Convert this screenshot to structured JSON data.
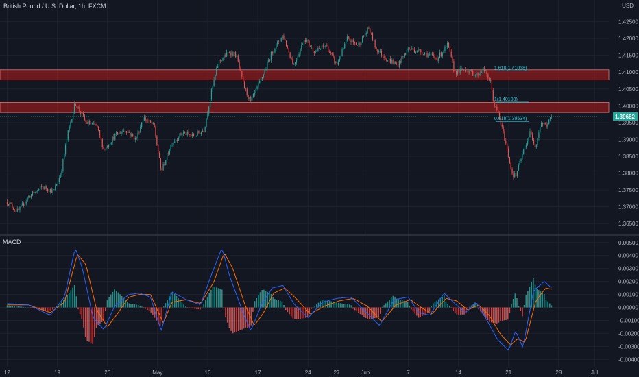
{
  "header": {
    "title": "British Pound / U.S. Dollar, 1h, FXCM",
    "currency": "USD"
  },
  "macd": {
    "label": "MACD"
  },
  "colors": {
    "bg": "#131722",
    "up": "#26a69a",
    "down": "#ef5350",
    "zone": "#b71c1c",
    "macd_line": "#2962ff",
    "signal_line": "#ff6d00",
    "fib": "#26c6da",
    "grid": "#1e222d",
    "text": "#b2b5be"
  },
  "chart_data": [
    {
      "type": "candlestick",
      "title": "British Pound / U.S. Dollar, 1h, FXCM",
      "y_ticks": [
        "1.42500",
        "1.42000",
        "1.41500",
        "1.41000",
        "1.40500",
        "1.40000",
        "1.39500",
        "1.39000",
        "1.38500",
        "1.38000",
        "1.37500",
        "1.37000",
        "1.36500"
      ],
      "ylim": [
        1.3622,
        1.4298
      ],
      "x_ticks": [
        "12",
        "19",
        "26",
        "May",
        "10",
        "17",
        "24",
        "27",
        "Jun",
        "7",
        "14",
        "21",
        "28",
        "Jul"
      ],
      "x_tick_pos": [
        0,
        7,
        14,
        21,
        28,
        35,
        42,
        46,
        50,
        56,
        63,
        70,
        77,
        82
      ],
      "xlim": [
        -1,
        84
      ],
      "last_price": "1.39682",
      "last_price_value": 1.39682,
      "zones": [
        {
          "low": 1.4077,
          "high": 1.4107
        },
        {
          "low": 1.398,
          "high": 1.401
        }
      ],
      "fib_levels": [
        {
          "label": "1.618(1.41038)",
          "value": 1.41038
        },
        {
          "label": "1(1.40108)",
          "value": 1.40108
        },
        {
          "label": "0.618(1.39534)",
          "value": 1.39534
        }
      ],
      "price_path": [
        [
          0,
          1.3715
        ],
        [
          1.5,
          1.3685
        ],
        [
          3,
          1.373
        ],
        [
          5,
          1.376
        ],
        [
          6.5,
          1.3745
        ],
        [
          7.5,
          1.38
        ],
        [
          8.5,
          1.392
        ],
        [
          9.5,
          1.401
        ],
        [
          11,
          1.395
        ],
        [
          12.5,
          1.394
        ],
        [
          13.5,
          1.387
        ],
        [
          15,
          1.391
        ],
        [
          16.5,
          1.393
        ],
        [
          18,
          1.39
        ],
        [
          19,
          1.3965
        ],
        [
          20.5,
          1.394
        ],
        [
          21.5,
          1.3805
        ],
        [
          23,
          1.389
        ],
        [
          24.5,
          1.392
        ],
        [
          26,
          1.391
        ],
        [
          27.5,
          1.393
        ],
        [
          28.5,
          1.404
        ],
        [
          29.5,
          1.413
        ],
        [
          31,
          1.416
        ],
        [
          32,
          1.415
        ],
        [
          33,
          1.406
        ],
        [
          34,
          1.401
        ],
        [
          35.5,
          1.408
        ],
        [
          37,
          1.416
        ],
        [
          38.5,
          1.421
        ],
        [
          40,
          1.412
        ],
        [
          41.5,
          1.42
        ],
        [
          43,
          1.416
        ],
        [
          44.5,
          1.418
        ],
        [
          46,
          1.412
        ],
        [
          47.5,
          1.42
        ],
        [
          49,
          1.418
        ],
        [
          50.5,
          1.423
        ],
        [
          51.5,
          1.417
        ],
        [
          53,
          1.414
        ],
        [
          54.5,
          1.412
        ],
        [
          56,
          1.417
        ],
        [
          58,
          1.416
        ],
        [
          60,
          1.414
        ],
        [
          61.5,
          1.418
        ],
        [
          62.5,
          1.41
        ],
        [
          64,
          1.411
        ],
        [
          65.5,
          1.409
        ],
        [
          66.5,
          1.411
        ],
        [
          67.5,
          1.407
        ],
        [
          68,
          1.4
        ],
        [
          68.5,
          1.398
        ],
        [
          69.5,
          1.39
        ],
        [
          70.5,
          1.38
        ],
        [
          71,
          1.379
        ],
        [
          72,
          1.386
        ],
        [
          73,
          1.392
        ],
        [
          73.8,
          1.388
        ],
        [
          74.5,
          1.395
        ],
        [
          75.3,
          1.394
        ],
        [
          76,
          1.3968
        ]
      ]
    },
    {
      "type": "macd",
      "title": "MACD",
      "y_ticks": [
        "0.00500",
        "0.00400",
        "0.00300",
        "0.00200",
        "0.00100",
        "0.00000",
        "-0.00100",
        "-0.00200",
        "-0.00300",
        "-0.00400"
      ],
      "ylim": [
        -0.0043,
        0.0052
      ],
      "macd_path": [
        [
          0,
          0.0003
        ],
        [
          3,
          0.0002
        ],
        [
          6,
          -0.0006
        ],
        [
          8,
          0.0008
        ],
        [
          9.5,
          0.0046
        ],
        [
          10.5,
          0.003
        ],
        [
          12,
          -0.0008
        ],
        [
          13.5,
          -0.0017
        ],
        [
          15,
          0.0001
        ],
        [
          17,
          0.001
        ],
        [
          18.5,
          0.0011
        ],
        [
          20,
          0.0008
        ],
        [
          21.5,
          -0.0018
        ],
        [
          23,
          0.0012
        ],
        [
          25,
          0.0006
        ],
        [
          27,
          0.0002
        ],
        [
          28.5,
          0.0025
        ],
        [
          30,
          0.0046
        ],
        [
          31,
          0.0025
        ],
        [
          33,
          -0.0005
        ],
        [
          34,
          -0.0018
        ],
        [
          35.5,
          0.0002
        ],
        [
          37,
          0.0015
        ],
        [
          38.5,
          0.0017
        ],
        [
          40,
          0.0003
        ],
        [
          42,
          -0.0008
        ],
        [
          44,
          0.0004
        ],
        [
          46,
          0.0007
        ],
        [
          48,
          0.0008
        ],
        [
          50,
          -0.0003
        ],
        [
          52,
          -0.0014
        ],
        [
          54,
          0.0006
        ],
        [
          56,
          0.0008
        ],
        [
          57.5,
          -0.0004
        ],
        [
          59,
          -0.0006
        ],
        [
          61,
          0.0011
        ],
        [
          62.5,
          0.0003
        ],
        [
          64,
          -0.0004
        ],
        [
          65.5,
          0.0004
        ],
        [
          67,
          -0.001
        ],
        [
          68.5,
          -0.0025
        ],
        [
          70,
          -0.0033
        ],
        [
          71,
          -0.0018
        ],
        [
          72,
          -0.0031
        ],
        [
          73.5,
          0.0013
        ],
        [
          75,
          0.002
        ],
        [
          76,
          0.0015
        ]
      ],
      "signal_path": [
        [
          0,
          0.0002
        ],
        [
          3,
          0.0002
        ],
        [
          6,
          -0.0004
        ],
        [
          8,
          0.0004
        ],
        [
          9.8,
          0.0041
        ],
        [
          11,
          0.0033
        ],
        [
          12.5,
          -0.0002
        ],
        [
          14,
          -0.0015
        ],
        [
          15.5,
          -0.0004
        ],
        [
          17,
          0.0008
        ],
        [
          18.5,
          0.001
        ],
        [
          20,
          0.001
        ],
        [
          21.8,
          -0.0012
        ],
        [
          23,
          0.0004
        ],
        [
          25,
          0.0006
        ],
        [
          27,
          0.0003
        ],
        [
          28.8,
          0.0019
        ],
        [
          30.3,
          0.0042
        ],
        [
          31.5,
          0.003
        ],
        [
          33.2,
          0.0002
        ],
        [
          34.5,
          -0.0014
        ],
        [
          35.8,
          -0.0004
        ],
        [
          37.2,
          0.0011
        ],
        [
          38.8,
          0.0015
        ],
        [
          40.5,
          0.0006
        ],
        [
          42.3,
          -0.0005
        ],
        [
          44.3,
          0.0001
        ],
        [
          46.3,
          0.0005
        ],
        [
          48.3,
          0.0007
        ],
        [
          50.3,
          0.0001
        ],
        [
          52.3,
          -0.0011
        ],
        [
          54.3,
          0.0002
        ],
        [
          56.3,
          0.0006
        ],
        [
          57.8,
          0.0
        ],
        [
          59.3,
          -0.0005
        ],
        [
          61.3,
          0.0007
        ],
        [
          62.8,
          0.0005
        ],
        [
          64.3,
          -0.0002
        ],
        [
          65.8,
          0.0002
        ],
        [
          67.3,
          -0.0006
        ],
        [
          68.8,
          -0.002
        ],
        [
          70.3,
          -0.0029
        ],
        [
          71.3,
          -0.0024
        ],
        [
          72.3,
          -0.0027
        ],
        [
          73.8,
          0.0005
        ],
        [
          75.2,
          0.0015
        ],
        [
          76,
          0.0014
        ]
      ]
    }
  ]
}
